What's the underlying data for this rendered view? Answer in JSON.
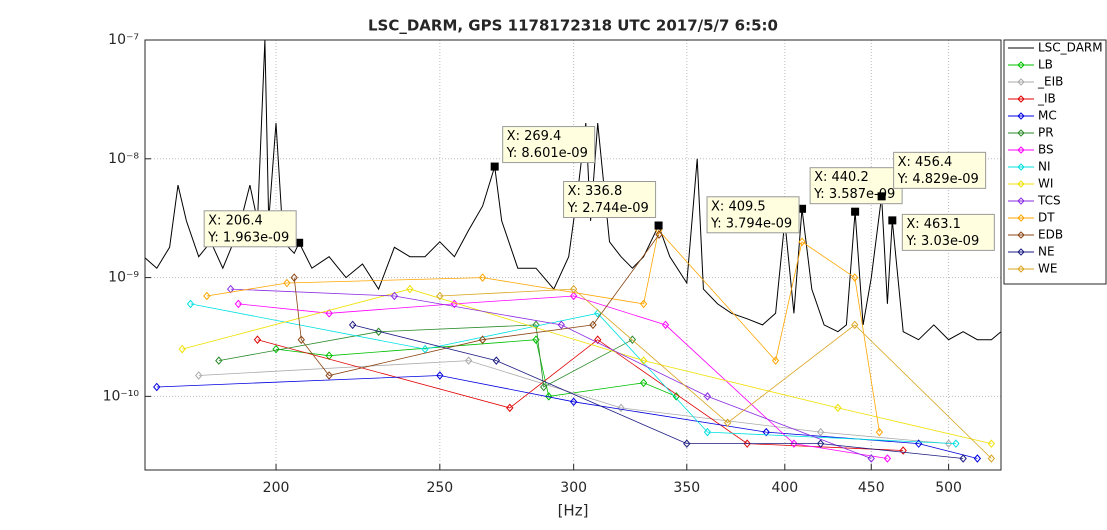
{
  "chart_data": {
    "type": "line",
    "title": "LSC_DARM, GPS 1178172318 UTC 2017/5/7 6:5:0",
    "x_label": "[Hz]",
    "x_scale": "log",
    "y_scale": "log",
    "grid": true,
    "legend": "outside right",
    "xlim": [
      167.3,
      537
    ],
    "ylim": [
      2.4e-11,
      1e-07
    ],
    "xticks": [
      200,
      250,
      300,
      350,
      400,
      450,
      500
    ],
    "yticks": [
      {
        "value": 1e-10,
        "label": "10⁻¹⁰"
      },
      {
        "value": 1e-09,
        "label": "10⁻⁹"
      },
      {
        "value": 1e-08,
        "label": "10⁻⁸"
      },
      {
        "value": 1e-07,
        "label": "10⁻⁷"
      }
    ],
    "series": [
      {
        "name": "LSC_DARM",
        "color": "#000000",
        "marker": "none",
        "x": [
          167,
          170,
          173,
          175,
          177,
          180,
          183,
          186,
          190,
          193,
          195,
          197,
          198,
          200,
          202,
          205,
          206.4,
          210,
          215,
          220,
          225,
          230,
          235,
          240,
          245,
          250,
          255,
          260,
          265,
          269.4,
          272,
          278,
          285,
          292,
          298,
          302,
          305,
          307,
          310,
          315,
          320,
          325,
          330,
          336.8,
          342,
          350,
          355,
          358,
          365,
          372,
          380,
          388,
          395,
          400,
          405,
          409.5,
          415,
          422,
          430,
          435,
          440.2,
          445,
          450,
          456.4,
          460,
          463.1,
          470,
          480,
          490,
          500,
          510,
          520,
          530,
          537
        ],
        "values": [
          1.5e-09,
          1.2e-09,
          1.8e-09,
          6e-09,
          3e-09,
          1.5e-09,
          2e-09,
          1.2e-09,
          2.5e-09,
          6e-09,
          3e-09,
          1e-07,
          3e-09,
          2e-08,
          2e-09,
          1.6e-09,
          1.963e-09,
          1.2e-09,
          1.5e-09,
          1e-09,
          1.3e-09,
          8e-10,
          1.8e-09,
          1.5e-09,
          1.5e-09,
          2e-09,
          1.5e-09,
          2.5e-09,
          4e-09,
          8.601e-09,
          3e-09,
          1.2e-09,
          1.2e-09,
          8e-10,
          1.5e-09,
          6e-09,
          2e-08,
          3e-09,
          2e-08,
          2e-09,
          1.5e-09,
          1.2e-09,
          1.5e-09,
          2.744e-09,
          1.5e-09,
          9e-10,
          1e-08,
          8e-10,
          6e-10,
          5e-10,
          4.5e-10,
          4e-10,
          5e-10,
          3e-09,
          5e-10,
          3.794e-09,
          8e-10,
          4e-10,
          3.5e-10,
          4e-10,
          3.587e-09,
          4e-10,
          1e-09,
          4.829e-09,
          6e-10,
          3.03e-09,
          3.5e-10,
          3e-10,
          4e-10,
          3e-10,
          3.5e-10,
          3e-10,
          3e-10,
          3.5e-10
        ]
      },
      {
        "name": "LB",
        "color": "#00c000",
        "marker": "diamond",
        "x": [
          200,
          215,
          285,
          290,
          330,
          345
        ],
        "values": [
          2.5e-10,
          2.2e-10,
          3e-10,
          1e-10,
          1.3e-10,
          1e-10
        ]
      },
      {
        "name": "_EIB",
        "color": "#aaaaaa",
        "marker": "diamond",
        "x": [
          180,
          260,
          320,
          420,
          500
        ],
        "values": [
          1.5e-10,
          2e-10,
          8e-11,
          5e-11,
          4e-11
        ]
      },
      {
        "name": "_IB",
        "color": "#e00000",
        "marker": "diamond",
        "x": [
          195,
          275,
          310,
          380,
          470
        ],
        "values": [
          3e-10,
          8e-11,
          3e-10,
          4e-11,
          3.5e-11
        ]
      },
      {
        "name": "MC",
        "color": "#0000e0",
        "marker": "diamond",
        "x": [
          170,
          250,
          300,
          390,
          480,
          520
        ],
        "values": [
          1.2e-10,
          1.5e-10,
          9e-11,
          5e-11,
          4e-11,
          3e-11
        ]
      },
      {
        "name": "PR",
        "color": "#2a8a2a",
        "marker": "diamond",
        "x": [
          185,
          230,
          285,
          288,
          325
        ],
        "values": [
          2e-10,
          3.5e-10,
          4e-10,
          1.2e-10,
          3e-10
        ]
      },
      {
        "name": "BS",
        "color": "#ff00ff",
        "marker": "diamond",
        "x": [
          190,
          215,
          255,
          300,
          340,
          405,
          460
        ],
        "values": [
          6e-10,
          5e-10,
          6e-10,
          7e-10,
          4e-10,
          4e-11,
          3e-11
        ]
      },
      {
        "name": "NI",
        "color": "#00e0e0",
        "marker": "diamond",
        "x": [
          178,
          245,
          310,
          360,
          505
        ],
        "values": [
          6e-10,
          2.5e-10,
          5e-10,
          5e-11,
          4e-11
        ]
      },
      {
        "name": "WI",
        "color": "#f0e000",
        "marker": "diamond",
        "x": [
          176,
          240,
          330,
          430,
          530
        ],
        "values": [
          2.5e-10,
          8e-10,
          2e-10,
          8e-11,
          4e-11
        ]
      },
      {
        "name": "TCS",
        "color": "#8a2be2",
        "marker": "diamond",
        "x": [
          188,
          235,
          295,
          360,
          450
        ],
        "values": [
          8e-10,
          7e-10,
          4e-10,
          1e-10,
          3e-11
        ]
      },
      {
        "name": "DT",
        "color": "#ffa500",
        "marker": "diamond",
        "x": [
          182,
          203,
          265,
          330,
          336.8,
          395,
          409.5,
          440,
          455
        ],
        "values": [
          7e-10,
          9e-10,
          1e-09,
          6e-10,
          2.5e-09,
          2e-10,
          2e-09,
          1e-09,
          5e-11
        ]
      },
      {
        "name": "EDB",
        "color": "#8b4513",
        "marker": "diamond",
        "x": [
          205,
          207,
          215,
          265,
          308,
          337
        ],
        "values": [
          1e-09,
          3e-10,
          1.5e-10,
          3e-10,
          4e-10,
          2.3e-09
        ]
      },
      {
        "name": "NE",
        "color": "#1a1a80",
        "marker": "diamond",
        "x": [
          222,
          270,
          350,
          420,
          510
        ],
        "values": [
          4e-10,
          2e-10,
          4e-11,
          4e-11,
          3e-11
        ]
      },
      {
        "name": "WE",
        "color": "#daa520",
        "marker": "diamond",
        "x": [
          250,
          300,
          370,
          440,
          530
        ],
        "values": [
          7e-10,
          8e-10,
          6e-11,
          4e-10,
          3e-11
        ]
      }
    ],
    "datatips": [
      {
        "x": 206.4,
        "y": 1.963e-09,
        "x_label": "X: 206.4",
        "y_label": "Y: 1.963e-09"
      },
      {
        "x": 269.4,
        "y": 8.601e-09,
        "x_label": "X: 269.4",
        "y_label": "Y: 8.601e-09"
      },
      {
        "x": 336.8,
        "y": 2.744e-09,
        "x_label": "X: 336.8",
        "y_label": "Y: 2.744e-09"
      },
      {
        "x": 409.5,
        "y": 3.794e-09,
        "x_label": "X: 409.5",
        "y_label": "Y: 3.794e-09"
      },
      {
        "x": 440.2,
        "y": 3.587e-09,
        "x_label": "X: 440.2",
        "y_label": "Y: 3.587e-09"
      },
      {
        "x": 456.4,
        "y": 4.829e-09,
        "x_label": "X: 456.4",
        "y_label": "Y: 4.829e-09"
      },
      {
        "x": 463.1,
        "y": 3.03e-09,
        "x_label": "X: 463.1",
        "y_label": "Y: 3.03e-09"
      }
    ]
  }
}
